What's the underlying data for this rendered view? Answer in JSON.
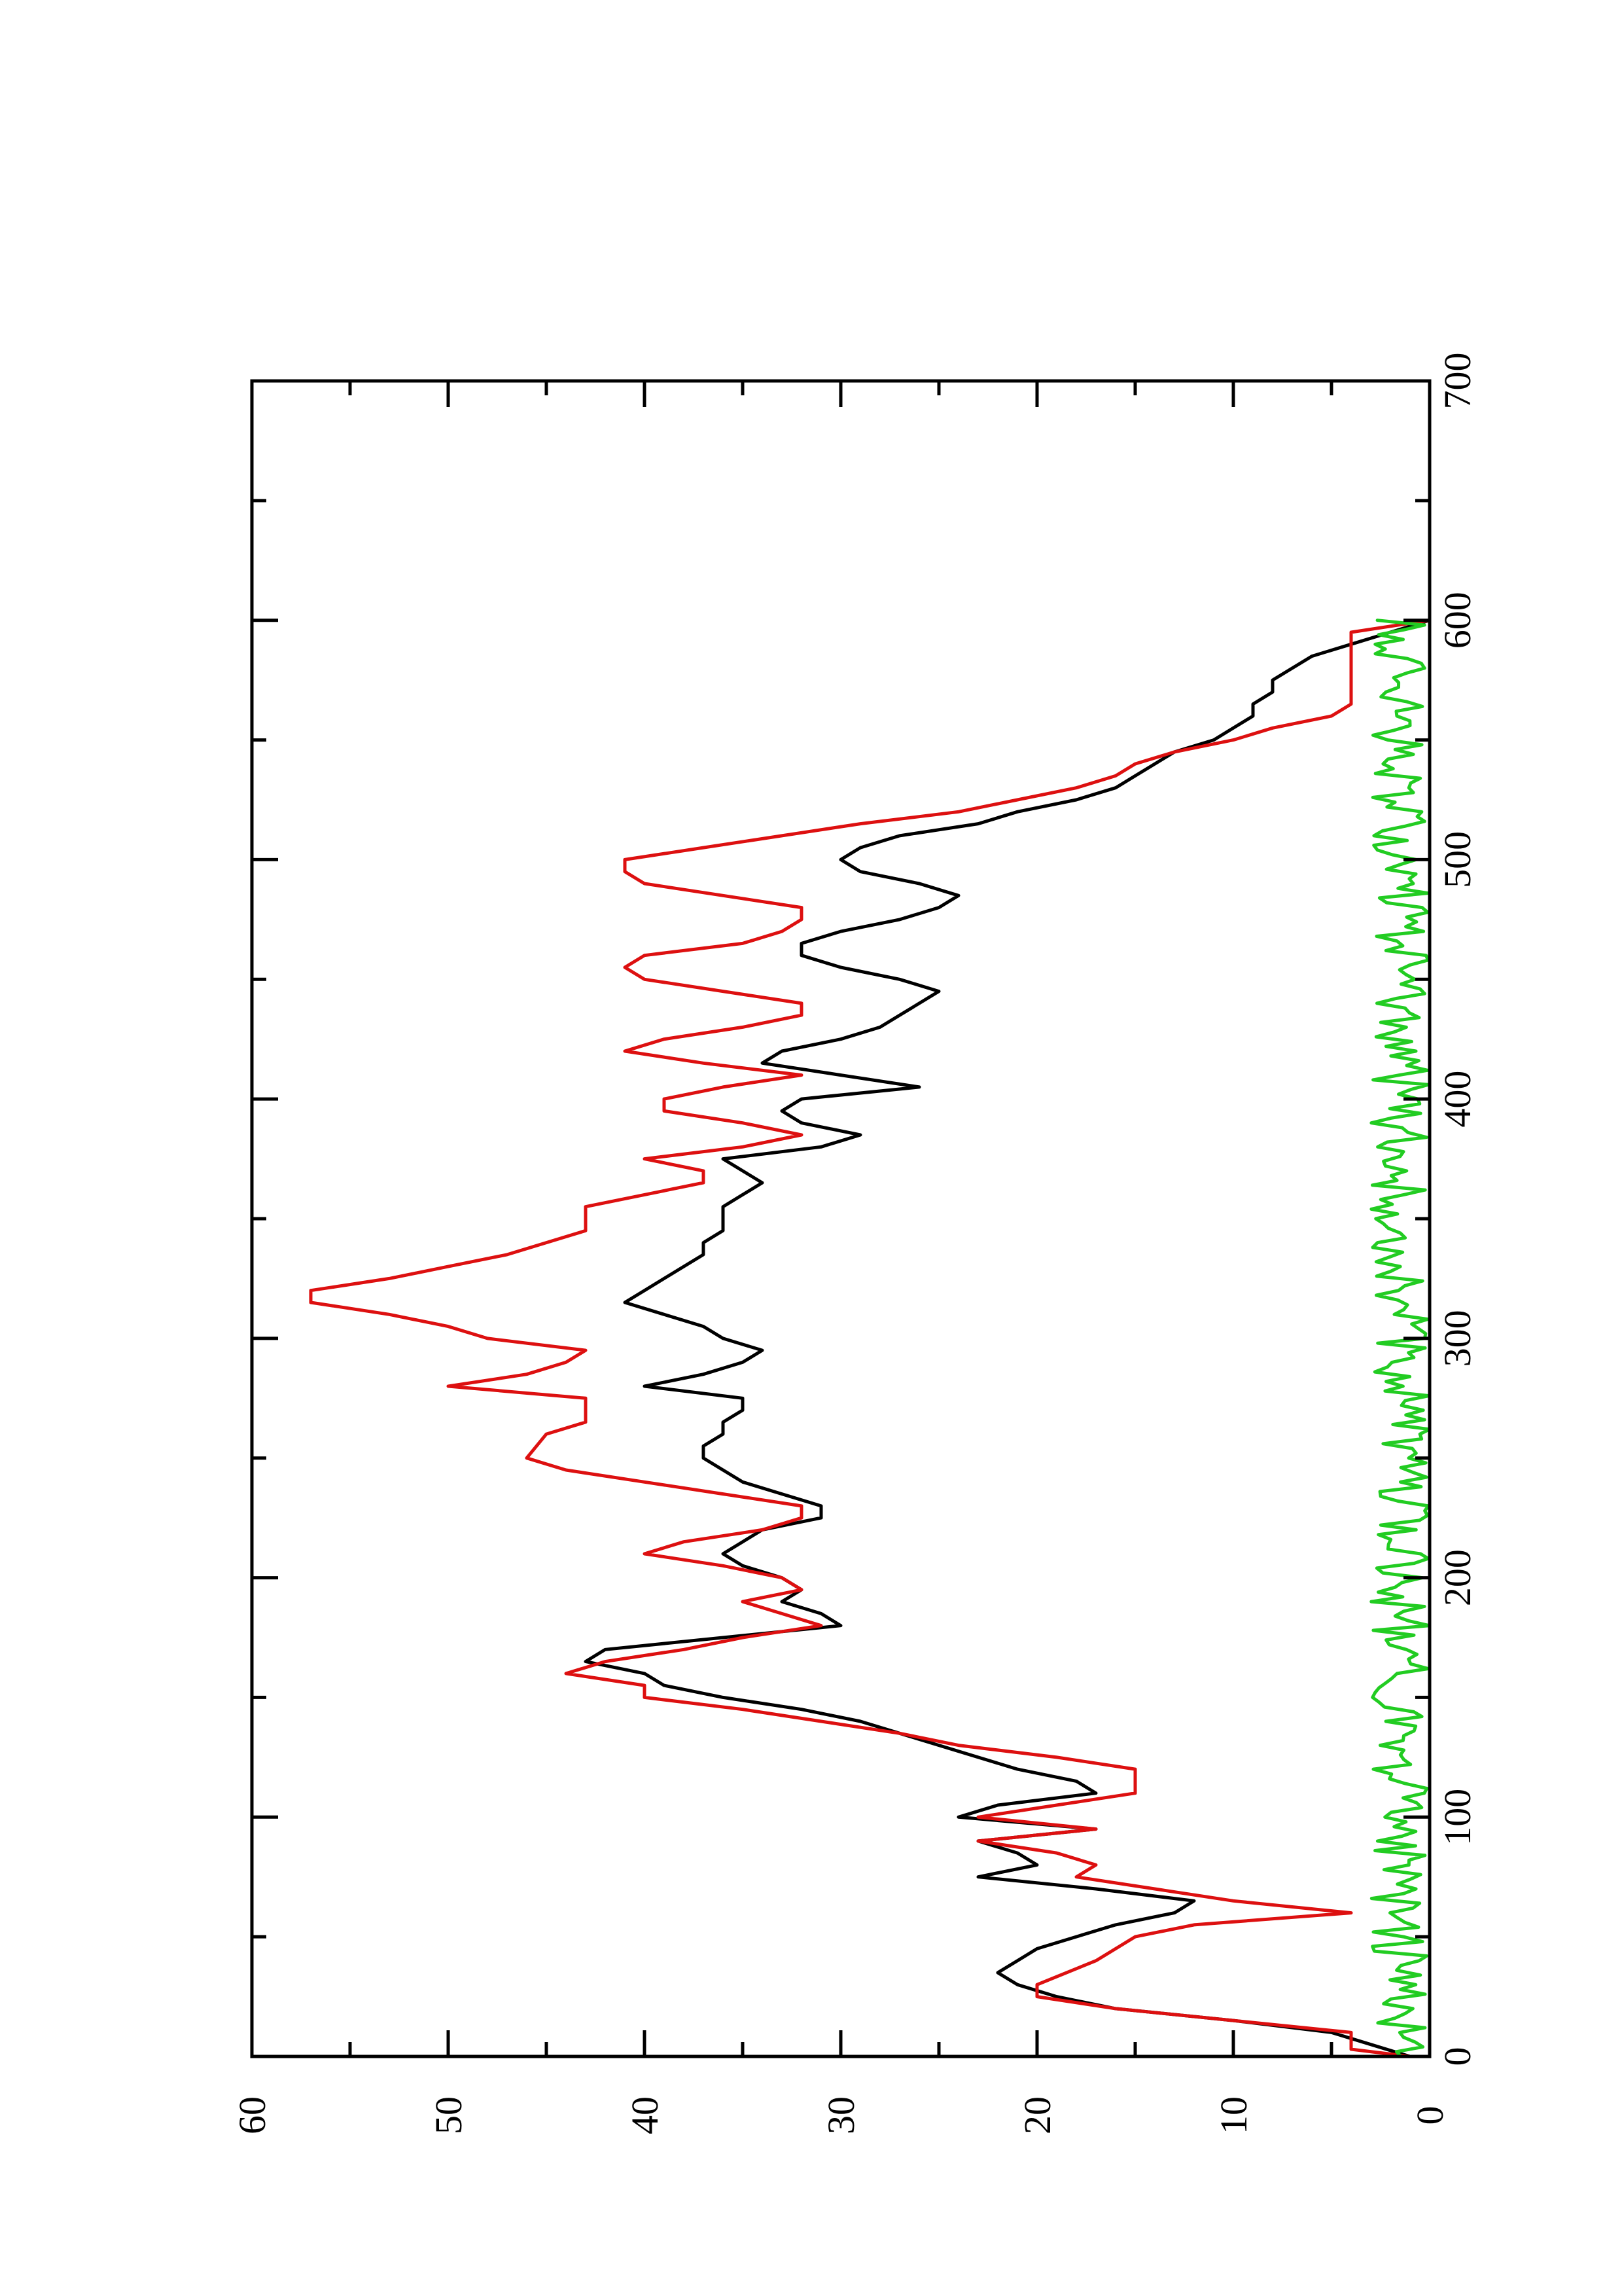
{
  "chart_data": {
    "type": "line",
    "title": "",
    "xlabel": "",
    "ylabel": "",
    "xlim": [
      0,
      700
    ],
    "ylim": [
      0,
      60
    ],
    "x_ticks": [
      "0",
      "100",
      "200",
      "300",
      "400",
      "500",
      "600",
      "700"
    ],
    "y_ticks": [
      "0",
      "10",
      "20",
      "30",
      "40",
      "50",
      "60"
    ],
    "grid": false,
    "legend": "none",
    "orientation": "rotated-90-ccw",
    "series": [
      {
        "color": "#000000",
        "points": [
          [
            0,
            1
          ],
          [
            5,
            3
          ],
          [
            10,
            5
          ],
          [
            15,
            10
          ],
          [
            20,
            16
          ],
          [
            25,
            19
          ],
          [
            30,
            21
          ],
          [
            35,
            22
          ],
          [
            40,
            21
          ],
          [
            45,
            20
          ],
          [
            50,
            18
          ],
          [
            55,
            16
          ],
          [
            60,
            13
          ],
          [
            65,
            12
          ],
          [
            70,
            17
          ],
          [
            75,
            23
          ],
          [
            80,
            20
          ],
          [
            85,
            21
          ],
          [
            90,
            23
          ],
          [
            95,
            17
          ],
          [
            100,
            24
          ],
          [
            105,
            22
          ],
          [
            110,
            17
          ],
          [
            115,
            18
          ],
          [
            120,
            21
          ],
          [
            125,
            23
          ],
          [
            130,
            25
          ],
          [
            135,
            27
          ],
          [
            140,
            29
          ],
          [
            145,
            32
          ],
          [
            150,
            36
          ],
          [
            155,
            39
          ],
          [
            160,
            40
          ],
          [
            165,
            43
          ],
          [
            170,
            42
          ],
          [
            175,
            36
          ],
          [
            180,
            30
          ],
          [
            185,
            31
          ],
          [
            190,
            33
          ],
          [
            195,
            32
          ],
          [
            200,
            33
          ],
          [
            205,
            35
          ],
          [
            210,
            36
          ],
          [
            215,
            35
          ],
          [
            220,
            34
          ],
          [
            225,
            31
          ],
          [
            230,
            31
          ],
          [
            235,
            33
          ],
          [
            240,
            35
          ],
          [
            245,
            36
          ],
          [
            250,
            37
          ],
          [
            255,
            37
          ],
          [
            260,
            36
          ],
          [
            265,
            36
          ],
          [
            270,
            35
          ],
          [
            275,
            35
          ],
          [
            280,
            40
          ],
          [
            285,
            37
          ],
          [
            290,
            35
          ],
          [
            295,
            34
          ],
          [
            300,
            36
          ],
          [
            305,
            37
          ],
          [
            310,
            39
          ],
          [
            315,
            41
          ],
          [
            320,
            40
          ],
          [
            325,
            39
          ],
          [
            330,
            38
          ],
          [
            335,
            37
          ],
          [
            340,
            37
          ],
          [
            345,
            36
          ],
          [
            350,
            36
          ],
          [
            355,
            36
          ],
          [
            360,
            35
          ],
          [
            365,
            34
          ],
          [
            370,
            35
          ],
          [
            375,
            36
          ],
          [
            380,
            31
          ],
          [
            385,
            29
          ],
          [
            390,
            32
          ],
          [
            395,
            33
          ],
          [
            400,
            32
          ],
          [
            405,
            26
          ],
          [
            410,
            30
          ],
          [
            415,
            34
          ],
          [
            420,
            33
          ],
          [
            425,
            30
          ],
          [
            430,
            28
          ],
          [
            435,
            27
          ],
          [
            440,
            26
          ],
          [
            445,
            25
          ],
          [
            450,
            27
          ],
          [
            455,
            30
          ],
          [
            460,
            32
          ],
          [
            465,
            32
          ],
          [
            470,
            30
          ],
          [
            475,
            27
          ],
          [
            480,
            25
          ],
          [
            485,
            24
          ],
          [
            490,
            26
          ],
          [
            495,
            29
          ],
          [
            500,
            30
          ],
          [
            505,
            29
          ],
          [
            510,
            27
          ],
          [
            515,
            23
          ],
          [
            520,
            21
          ],
          [
            525,
            18
          ],
          [
            530,
            16
          ],
          [
            535,
            15
          ],
          [
            540,
            14
          ],
          [
            545,
            13
          ],
          [
            550,
            11
          ],
          [
            555,
            10
          ],
          [
            560,
            9
          ],
          [
            565,
            9
          ],
          [
            570,
            8
          ],
          [
            575,
            8
          ],
          [
            580,
            7
          ],
          [
            585,
            6
          ],
          [
            590,
            4
          ],
          [
            595,
            2
          ],
          [
            600,
            0
          ]
        ]
      },
      {
        "color": "#dd1010",
        "points": [
          [
            0,
            1
          ],
          [
            3,
            4
          ],
          [
            10,
            4
          ],
          [
            15,
            10
          ],
          [
            20,
            16
          ],
          [
            25,
            20
          ],
          [
            30,
            20
          ],
          [
            40,
            17
          ],
          [
            50,
            15
          ],
          [
            55,
            12
          ],
          [
            60,
            4
          ],
          [
            65,
            10
          ],
          [
            70,
            14
          ],
          [
            75,
            18
          ],
          [
            80,
            17
          ],
          [
            85,
            19
          ],
          [
            90,
            23
          ],
          [
            95,
            17
          ],
          [
            100,
            23
          ],
          [
            105,
            19
          ],
          [
            110,
            15
          ],
          [
            120,
            15
          ],
          [
            125,
            19
          ],
          [
            130,
            24
          ],
          [
            135,
            27
          ],
          [
            140,
            31
          ],
          [
            145,
            35
          ],
          [
            150,
            40
          ],
          [
            155,
            40
          ],
          [
            160,
            44
          ],
          [
            165,
            42
          ],
          [
            170,
            38
          ],
          [
            175,
            35
          ],
          [
            180,
            31
          ],
          [
            185,
            33
          ],
          [
            190,
            35
          ],
          [
            195,
            32
          ],
          [
            200,
            33
          ],
          [
            205,
            36
          ],
          [
            210,
            40
          ],
          [
            215,
            38
          ],
          [
            220,
            34
          ],
          [
            225,
            32
          ],
          [
            230,
            32
          ],
          [
            235,
            36
          ],
          [
            240,
            40
          ],
          [
            245,
            44
          ],
          [
            250,
            46
          ],
          [
            260,
            45
          ],
          [
            265,
            43
          ],
          [
            275,
            43
          ],
          [
            280,
            50
          ],
          [
            285,
            46
          ],
          [
            290,
            44
          ],
          [
            295,
            43
          ],
          [
            300,
            48
          ],
          [
            305,
            50
          ],
          [
            310,
            53
          ],
          [
            315,
            57
          ],
          [
            320,
            57
          ],
          [
            325,
            53
          ],
          [
            330,
            50
          ],
          [
            335,
            47
          ],
          [
            340,
            45
          ],
          [
            345,
            43
          ],
          [
            355,
            43
          ],
          [
            360,
            40
          ],
          [
            365,
            37
          ],
          [
            370,
            37
          ],
          [
            375,
            40
          ],
          [
            380,
            35
          ],
          [
            385,
            32
          ],
          [
            390,
            35
          ],
          [
            395,
            39
          ],
          [
            400,
            39
          ],
          [
            405,
            36
          ],
          [
            410,
            32
          ],
          [
            415,
            37
          ],
          [
            420,
            41
          ],
          [
            425,
            39
          ],
          [
            430,
            35
          ],
          [
            435,
            32
          ],
          [
            440,
            32
          ],
          [
            445,
            36
          ],
          [
            450,
            40
          ],
          [
            455,
            41
          ],
          [
            460,
            40
          ],
          [
            465,
            35
          ],
          [
            470,
            33
          ],
          [
            475,
            32
          ],
          [
            480,
            32
          ],
          [
            485,
            36
          ],
          [
            490,
            40
          ],
          [
            495,
            41
          ],
          [
            500,
            41
          ],
          [
            505,
            37
          ],
          [
            510,
            33
          ],
          [
            515,
            29
          ],
          [
            520,
            24
          ],
          [
            525,
            21
          ],
          [
            530,
            18
          ],
          [
            535,
            16
          ],
          [
            540,
            15
          ],
          [
            545,
            13
          ],
          [
            550,
            10
          ],
          [
            555,
            8
          ],
          [
            560,
            5
          ],
          [
            565,
            4
          ],
          [
            570,
            4
          ],
          [
            580,
            4
          ],
          [
            590,
            4
          ],
          [
            595,
            4
          ],
          [
            600,
            0
          ]
        ]
      },
      {
        "color": "#22cc22",
        "noise": {
          "x_start": 0,
          "x_end": 600,
          "step": 2,
          "min": 0,
          "max": 3
        }
      }
    ]
  }
}
